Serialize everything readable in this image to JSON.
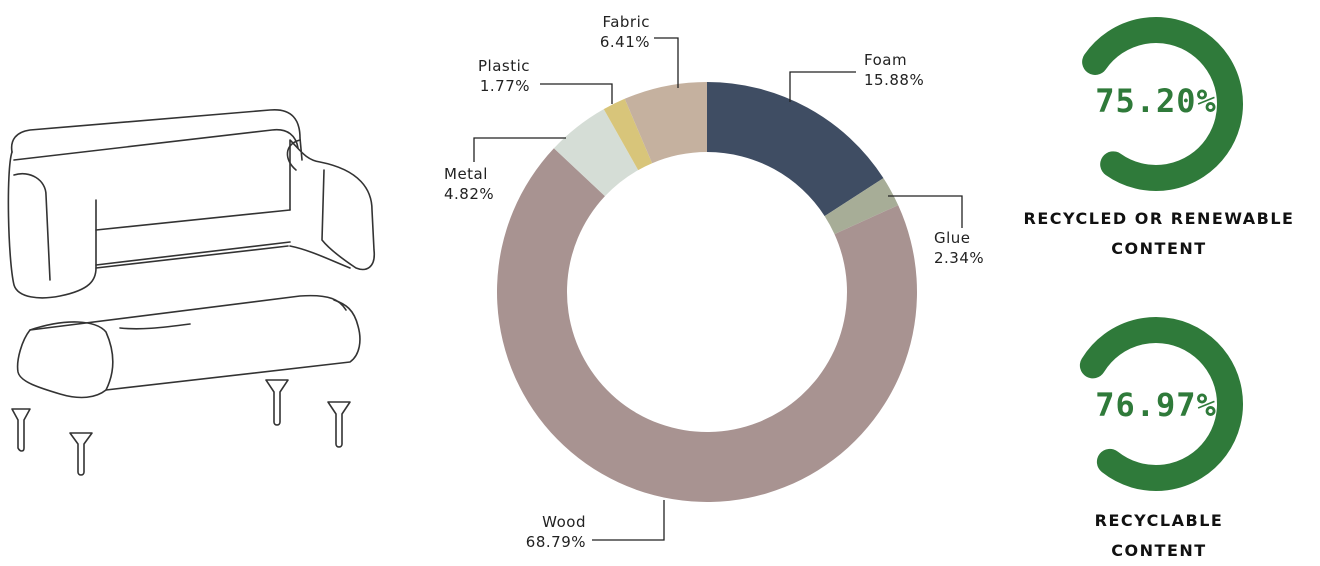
{
  "illustration": {
    "icon": "sofa-outline-icon"
  },
  "chart_data": {
    "type": "pie",
    "variant": "donut",
    "slices": [
      {
        "label": "Foam",
        "display": "15.88%",
        "value": 15.88,
        "color": "#3f4d63"
      },
      {
        "label": "Glue",
        "display": "2.34%",
        "value": 2.34,
        "color": "#a7ad97"
      },
      {
        "label": "Wood",
        "display": "68.79%",
        "value": 68.79,
        "color": "#a89391"
      },
      {
        "label": "Metal",
        "display": "4.82%",
        "value": 4.82,
        "color": "#d5ddd6"
      },
      {
        "label": "Plastic",
        "display": "1.77%",
        "value": 1.77,
        "color": "#d8c57a"
      },
      {
        "label": "Fabric",
        "display": "6.41%",
        "value": 6.41,
        "color": "#c5b19f"
      }
    ]
  },
  "gauges": [
    {
      "value": 75.2,
      "display": "75.20%",
      "label_line1": "RECYCLED OR RENEWABLE",
      "label_line2": "CONTENT",
      "color": "#2f7a3a"
    },
    {
      "value": 76.97,
      "display": "76.97%",
      "label_line1": "RECYCLABLE",
      "label_line2": "CONTENT",
      "color": "#2f7a3a"
    }
  ]
}
